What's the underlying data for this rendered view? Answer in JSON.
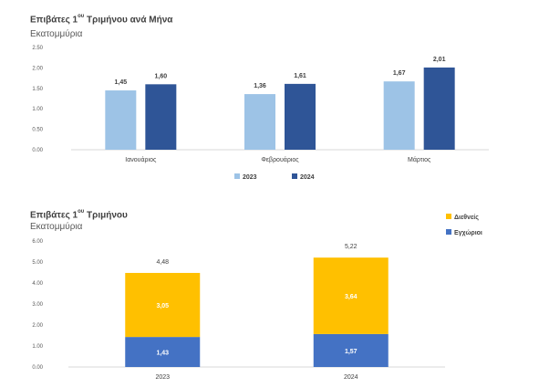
{
  "chart_data": [
    {
      "type": "bar",
      "title": "Επιβάτες 1",
      "title_sup": "ου",
      "title_rest": " Τριμήνου ανά Μήνα",
      "subtitle": "Εκατομμύρια",
      "categories": [
        "Ιανουάριος",
        "Φεβρουάριος",
        "Μάρτιος"
      ],
      "series": [
        {
          "name": "2023",
          "values": [
            1.45,
            1.36,
            1.67
          ],
          "labels": [
            "1,45",
            "1,36",
            "1,67"
          ],
          "color": "#9DC3E6"
        },
        {
          "name": "2024",
          "values": [
            1.6,
            1.61,
            2.01
          ],
          "labels": [
            "1,60",
            "1,61",
            "2,01"
          ],
          "color": "#2F5597"
        }
      ],
      "ylim": [
        0,
        2.5
      ],
      "yticks": [
        "0.00",
        "0.50",
        "1.00",
        "1.50",
        "2.00",
        "2.50"
      ],
      "grid": false,
      "legend_position": "bottom"
    },
    {
      "type": "bar",
      "stacked": true,
      "title": "Επιβάτες 1",
      "title_sup": "ου",
      "title_rest": " Τριμήνου",
      "subtitle": "Εκατομμύρια",
      "categories": [
        "2023",
        "2024"
      ],
      "series": [
        {
          "name": "Εγχώριοι",
          "values": [
            1.43,
            1.57
          ],
          "labels": [
            "1,43",
            "1,57"
          ],
          "color": "#4472C4"
        },
        {
          "name": "Διεθνείς",
          "values": [
            3.05,
            3.64
          ],
          "labels": [
            "3,05",
            "3,64"
          ],
          "color": "#FFC000"
        }
      ],
      "totals": [
        "4,48",
        "5,22"
      ],
      "ylim": [
        0,
        6
      ],
      "yticks": [
        "0.00",
        "1.00",
        "2.00",
        "3.00",
        "4.00",
        "5.00",
        "6.00"
      ],
      "grid": false,
      "legend_position": "top-right"
    }
  ]
}
